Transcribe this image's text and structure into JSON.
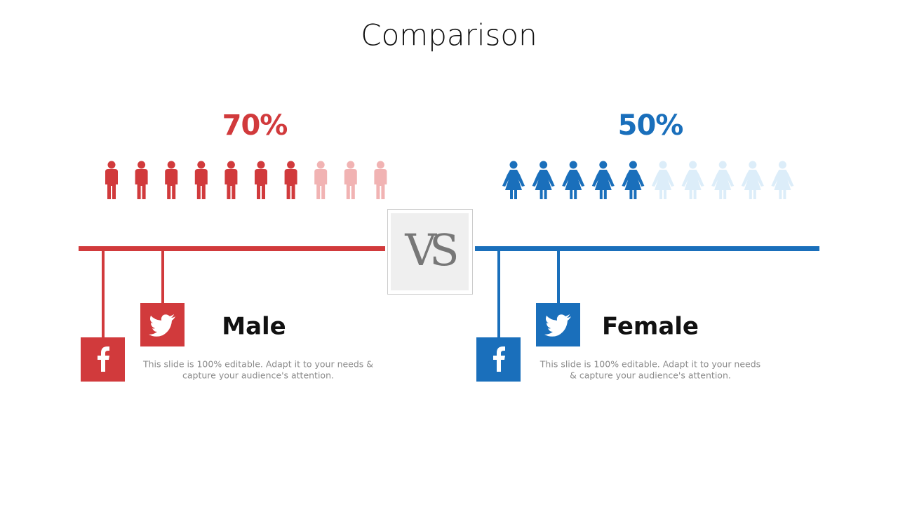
{
  "title": "Comparison",
  "vs": "VS",
  "panels": [
    {
      "percent": "70%",
      "icons_filled": 7,
      "icons_total": 10,
      "label": "Male",
      "description_lines": [
        "This slide is 100% editable. Adapt it to your needs &",
        "capture your audience's attention."
      ],
      "figure": "male",
      "color": "#d13a3c",
      "faded_color": "#f1b3b3"
    },
    {
      "percent": "50%",
      "icons_filled": 5,
      "icons_total": 10,
      "label": "Female",
      "description_lines": [
        "This slide is 100% editable. Adapt it to your needs",
        "& capture your audience's attention."
      ],
      "figure": "female",
      "color": "#1a6fbb",
      "faded_color": "#dcedf9"
    }
  ]
}
